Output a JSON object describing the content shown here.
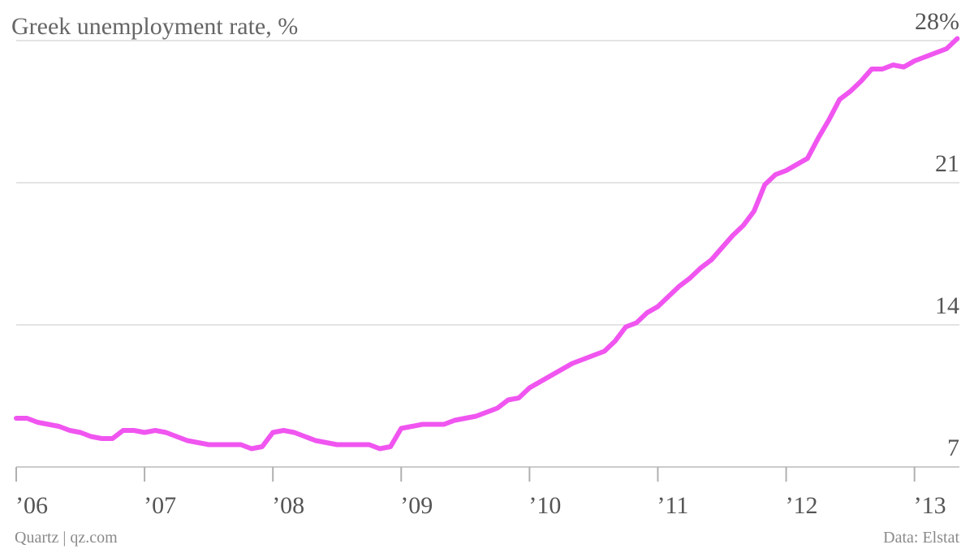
{
  "chart_data": {
    "type": "line",
    "title": "Greek unemployment rate, %",
    "xlabel": "",
    "ylabel": "",
    "ylim": [
      7,
      28
    ],
    "xlim": [
      2006.0,
      2013.35
    ],
    "yticks": [
      7,
      14,
      21,
      28
    ],
    "ytick_labels": [
      "7",
      "14",
      "21",
      "28%"
    ],
    "xticks": [
      2006,
      2007,
      2008,
      2009,
      2010,
      2011,
      2012,
      2013
    ],
    "xtick_labels": [
      "’06",
      "’07",
      "’08",
      "’09",
      "’10",
      "’11",
      "’12",
      "’13"
    ],
    "grid": true,
    "color": "#f055f0",
    "series": [
      {
        "name": "",
        "x": [
          2006.0,
          2006.0833,
          2006.1667,
          2006.25,
          2006.3333,
          2006.4167,
          2006.5,
          2006.5833,
          2006.6667,
          2006.75,
          2006.8333,
          2006.9167,
          2007.0,
          2007.0833,
          2007.1667,
          2007.25,
          2007.3333,
          2007.4167,
          2007.5,
          2007.5833,
          2007.6667,
          2007.75,
          2007.8333,
          2007.9167,
          2008.0,
          2008.0833,
          2008.1667,
          2008.25,
          2008.3333,
          2008.4167,
          2008.5,
          2008.5833,
          2008.6667,
          2008.75,
          2008.8333,
          2008.9167,
          2009.0,
          2009.0833,
          2009.1667,
          2009.25,
          2009.3333,
          2009.4167,
          2009.5,
          2009.5833,
          2009.6667,
          2009.75,
          2009.8333,
          2009.9167,
          2010.0,
          2010.0833,
          2010.1667,
          2010.25,
          2010.3333,
          2010.4167,
          2010.5,
          2010.5833,
          2010.6667,
          2010.75,
          2010.8333,
          2010.9167,
          2011.0,
          2011.0833,
          2011.1667,
          2011.25,
          2011.3333,
          2011.4167,
          2011.5,
          2011.5833,
          2011.6667,
          2011.75,
          2011.8333,
          2011.9167,
          2012.0,
          2012.0833,
          2012.1667,
          2012.25,
          2012.3333,
          2012.4167,
          2012.5,
          2012.5833,
          2012.6667,
          2012.75,
          2012.8333,
          2012.9167,
          2013.0,
          2013.0833,
          2013.1667,
          2013.25,
          2013.3333
        ],
        "values": [
          9.4,
          9.4,
          9.2,
          9.1,
          9.0,
          8.8,
          8.7,
          8.5,
          8.4,
          8.4,
          8.8,
          8.8,
          8.7,
          8.8,
          8.7,
          8.5,
          8.3,
          8.2,
          8.1,
          8.1,
          8.1,
          8.1,
          7.9,
          8.0,
          8.7,
          8.8,
          8.7,
          8.5,
          8.3,
          8.2,
          8.1,
          8.1,
          8.1,
          8.1,
          7.9,
          8.0,
          8.9,
          9.0,
          9.1,
          9.1,
          9.1,
          9.3,
          9.4,
          9.5,
          9.7,
          9.9,
          10.3,
          10.4,
          10.9,
          11.2,
          11.5,
          11.8,
          12.1,
          12.3,
          12.5,
          12.7,
          13.2,
          13.9,
          14.1,
          14.6,
          14.9,
          15.4,
          15.9,
          16.3,
          16.8,
          17.2,
          17.8,
          18.4,
          18.9,
          19.6,
          20.9,
          21.4,
          21.6,
          21.9,
          22.2,
          23.2,
          24.1,
          25.1,
          25.5,
          26.0,
          26.6,
          26.6,
          26.8,
          26.7,
          27.0,
          27.2,
          27.4,
          27.6,
          28.1
        ]
      }
    ]
  },
  "footer": {
    "source_left": "Quartz | qz.com",
    "source_right": "Data: Elstat"
  }
}
